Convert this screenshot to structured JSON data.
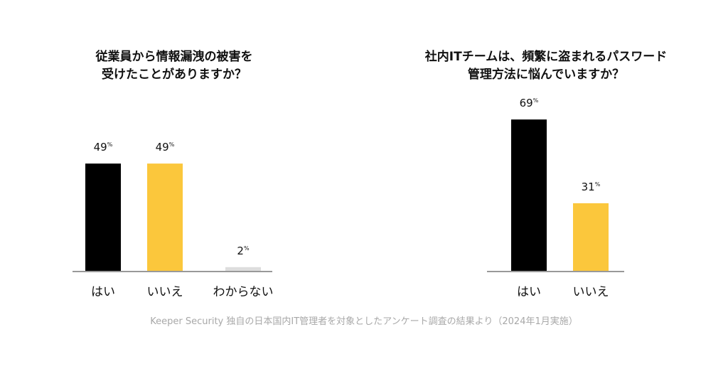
{
  "chart_data": [
    {
      "type": "bar",
      "title_line1": "従業員から情報漏洩の被害を",
      "title_line2": "受けたことがありますか？",
      "categories": [
        "はい",
        "いいえ",
        "わからない"
      ],
      "values": [
        49,
        49,
        2
      ],
      "value_labels": [
        "49",
        "49",
        "2"
      ],
      "unit": "%",
      "colors": [
        "#000000",
        "#fbc73c",
        "#dddddd"
      ],
      "ylim": [
        0,
        100
      ]
    },
    {
      "type": "bar",
      "title_line1": "社内ITチームは、頻繁に盗まれるパスワード",
      "title_line2": "管理方法に悩んでいますか？",
      "categories": [
        "はい",
        "いいえ"
      ],
      "values": [
        69,
        31
      ],
      "value_labels": [
        "69",
        "31"
      ],
      "unit": "%",
      "colors": [
        "#000000",
        "#fbc73c"
      ],
      "ylim": [
        0,
        100
      ]
    }
  ],
  "source": "Keeper Security 独自の日本国内IT管理者を対象としたアンケート調査の結果より（2024年1月実施）",
  "axis_color": "#999999"
}
